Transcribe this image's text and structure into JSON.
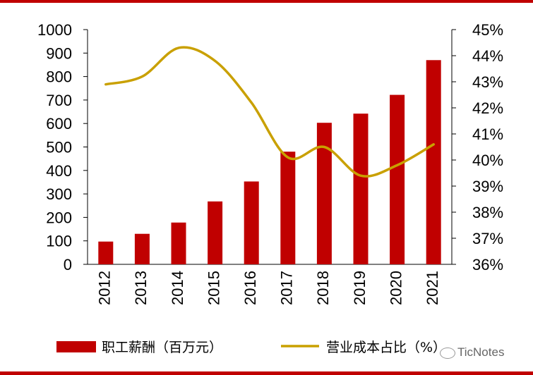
{
  "chart_data": {
    "type": "bar+line",
    "categories": [
      "2012",
      "2013",
      "2014",
      "2015",
      "2016",
      "2017",
      "2018",
      "2019",
      "2020",
      "2021"
    ],
    "series": [
      {
        "name": "职工薪酬（百万元）",
        "kind": "bar",
        "axis": "left",
        "color": "#c00000",
        "values": [
          97,
          130,
          178,
          268,
          353,
          480,
          603,
          642,
          722,
          870
        ]
      },
      {
        "name": "营业成本占比（%）",
        "kind": "line",
        "axis": "right",
        "color": "#c9a000",
        "values": [
          42.9,
          43.2,
          44.3,
          43.8,
          42.2,
          40.1,
          40.5,
          39.4,
          39.8,
          40.6
        ]
      }
    ],
    "left_axis": {
      "min": 0,
      "max": 1000,
      "step": 100,
      "tick_labels": [
        "0",
        "100",
        "200",
        "300",
        "400",
        "500",
        "600",
        "700",
        "800",
        "900",
        "1000"
      ]
    },
    "right_axis": {
      "min": 36,
      "max": 45,
      "step": 1,
      "tick_labels": [
        "36%",
        "37%",
        "38%",
        "39%",
        "40%",
        "41%",
        "42%",
        "43%",
        "44%",
        "45%"
      ]
    },
    "legend_position": "bottom",
    "watermark": "TicNotes"
  }
}
